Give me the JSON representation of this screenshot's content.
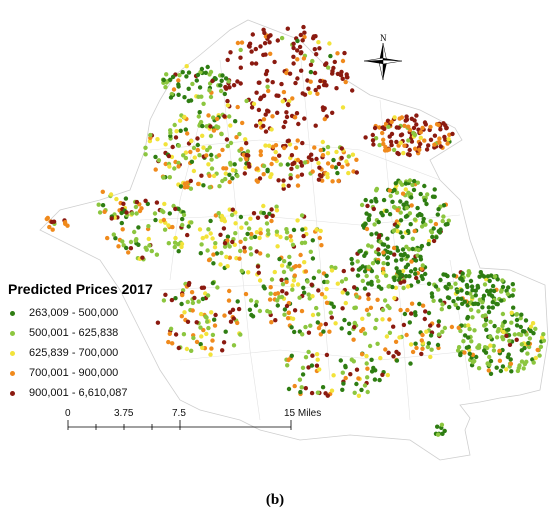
{
  "map": {
    "legend": {
      "title": "Predicted Prices 2017",
      "classes": [
        {
          "label": "263,009 - 500,000",
          "color": "#2e7d12"
        },
        {
          "label": "500,001 - 625,838",
          "color": "#8cc63f"
        },
        {
          "label": "625,839 - 700,000",
          "color": "#f2e33a"
        },
        {
          "label": "700,001 - 900,000",
          "color": "#f08a1c"
        },
        {
          "label": "900,001 - 6,610,087",
          "color": "#8b1a10"
        }
      ]
    },
    "scale_bar": {
      "ticks": [
        "0",
        "3.75",
        "7.5",
        "15 Miles"
      ]
    },
    "north_arrow": {
      "label": "N"
    },
    "caption": "(b)"
  }
}
